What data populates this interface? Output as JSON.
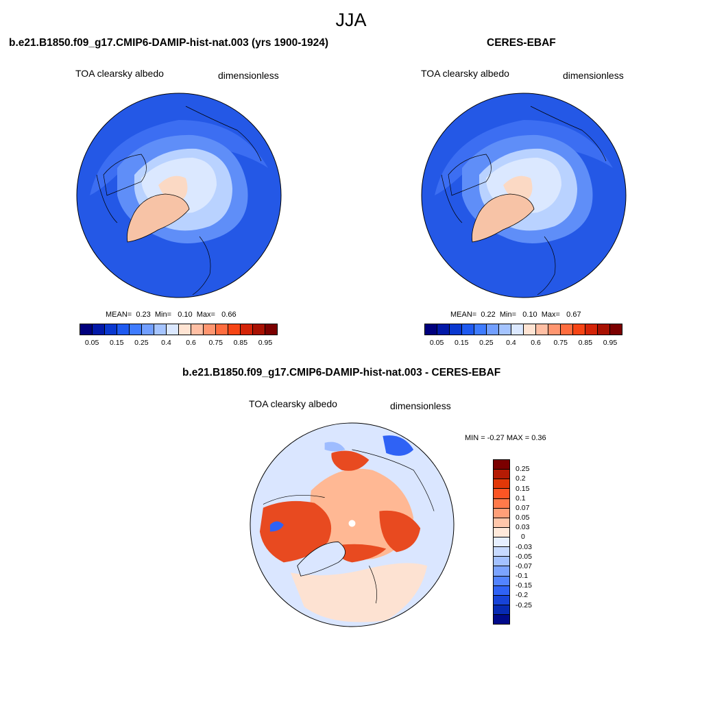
{
  "season": "JJA",
  "panels": [
    {
      "title": "b.e21.B1850.f09_g17.CMIP6-DAMIP-hist-nat.003 (yrs 1900-1924)",
      "variable": "TOA clearsky albedo",
      "units": "dimensionless",
      "stats": {
        "mean_label": "MEAN=",
        "mean": "0.23",
        "min_label": "Min=",
        "min": "0.10",
        "max_label": "Max=",
        "max": "0.66"
      }
    },
    {
      "title": "CERES-EBAF",
      "variable": "TOA clearsky albedo",
      "units": "dimensionless",
      "stats": {
        "mean_label": "MEAN=",
        "mean": "0.22",
        "min_label": "Min=",
        "min": "0.10",
        "max_label": "Max=",
        "max": "0.67"
      }
    },
    {
      "title": "b.e21.B1850.f09_g17.CMIP6-DAMIP-hist-nat.003 - CERES-EBAF",
      "variable": "TOA clearsky albedo",
      "units": "dimensionless",
      "minmax_label": "MIN =  -0.27 MAX =   0.36"
    }
  ],
  "colorbar_abs": {
    "colors": [
      "#00007d",
      "#0219a8",
      "#0a38cf",
      "#1f5af0",
      "#3f7cff",
      "#729fff",
      "#a5c4ff",
      "#dbe8ff",
      "#ffe4d3",
      "#ffbfa4",
      "#ff9670",
      "#ff6d3f",
      "#f64515",
      "#d42408",
      "#a81102",
      "#7b0000"
    ],
    "ticks": [
      "0.05",
      "0.15",
      "0.25",
      "0.4",
      "0.6",
      "0.75",
      "0.85",
      "0.95"
    ]
  },
  "colorbar_diff": {
    "colors": [
      "#7b0000",
      "#b51b04",
      "#e23808",
      "#fc5524",
      "#ff7a4a",
      "#ff9f78",
      "#ffc6aa",
      "#ffe9da",
      "#e6efff",
      "#c7daff",
      "#a3c1ff",
      "#7ba3ff",
      "#5283ff",
      "#2f62f5",
      "#1743d8",
      "#072ab3",
      "#000a8a"
    ],
    "ticks": [
      "0.25",
      "0.2",
      "0.15",
      "0.1",
      "0.07",
      "0.05",
      "0.03",
      "0",
      "-0.03",
      "-0.05",
      "-0.07",
      "-0.1",
      "-0.15",
      "-0.2",
      "-0.25"
    ]
  },
  "map_colors": {
    "ocean": "#2458e6",
    "ocean_light": "#3c6ef2",
    "mid": "#5f8ef8",
    "ice": "#b9d2ff",
    "ice_light": "#dbe8ff",
    "land_high": "#fbd9c4",
    "greenland": "#f7c3a6",
    "diff_bg": "#dae6ff",
    "diff_warm": "#e84a20",
    "diff_warm_light": "#ffb894",
    "diff_pale": "#fde2d2",
    "diff_cool": "#9ebcff",
    "diff_blue": "#2f62f5"
  }
}
